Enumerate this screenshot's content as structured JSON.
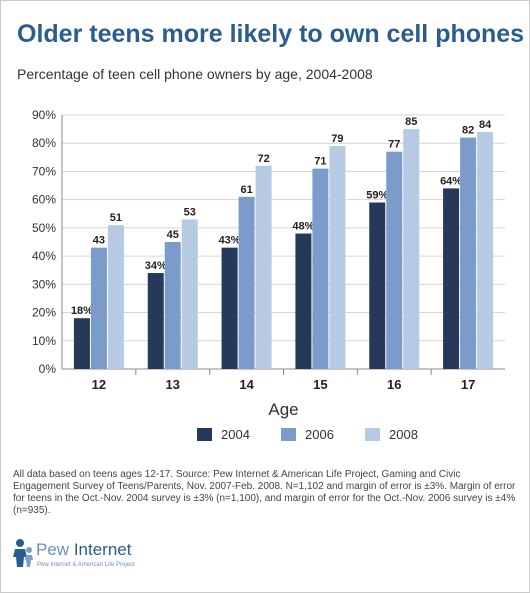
{
  "header": {
    "title": "Older teens more likely to own cell phones",
    "subtitle": "Percentage of teen cell phone owners by age, 2004-2008"
  },
  "chart_data": {
    "type": "bar",
    "categories": [
      "12",
      "13",
      "14",
      "15",
      "16",
      "17"
    ],
    "series": [
      {
        "name": "2004",
        "values": [
          18,
          34,
          43,
          48,
          59,
          64
        ],
        "labels": [
          "18%",
          "34%",
          "43%",
          "48%",
          "59%",
          "64%"
        ],
        "color": "#26395a"
      },
      {
        "name": "2006",
        "values": [
          43,
          45,
          61,
          71,
          77,
          82
        ],
        "labels": [
          "43",
          "45",
          "61",
          "71",
          "77",
          "82"
        ],
        "color": "#7b9ccb"
      },
      {
        "name": "2008",
        "values": [
          51,
          53,
          72,
          79,
          85,
          84
        ],
        "labels": [
          "51",
          "53",
          "72",
          "79",
          "85",
          "84"
        ],
        "color": "#b7cae3"
      }
    ],
    "ylim": [
      0,
      90
    ],
    "yticks": [
      "0%",
      "10%",
      "20%",
      "30%",
      "40%",
      "50%",
      "60%",
      "70%",
      "80%",
      "90%"
    ],
    "xlabel": "Age",
    "ylabel": "",
    "legend_placement": "bottom",
    "grid": true
  },
  "footer": {
    "note": "All data based on teens ages 12-17. Source: Pew Internet & American Life Project, Gaming and Civic Engagement Survey of Teens/Parents, Nov. 2007-Feb. 2008. N=1,102 and margin of error is ±3%. Margin of error for teens in the Oct.-Nov. 2004 survey is ±3% (n=1,100), and margin of error for the Oct.-Nov. 2006 survey is ±4% (n=935).",
    "logo_pew": "Pew",
    "logo_internet": "Internet",
    "logo_tagline": "Pew Internet & American Life Project"
  },
  "colors": {
    "title": "#2a5d8f",
    "grid": "#d6d6d6",
    "axis": "#333333"
  }
}
